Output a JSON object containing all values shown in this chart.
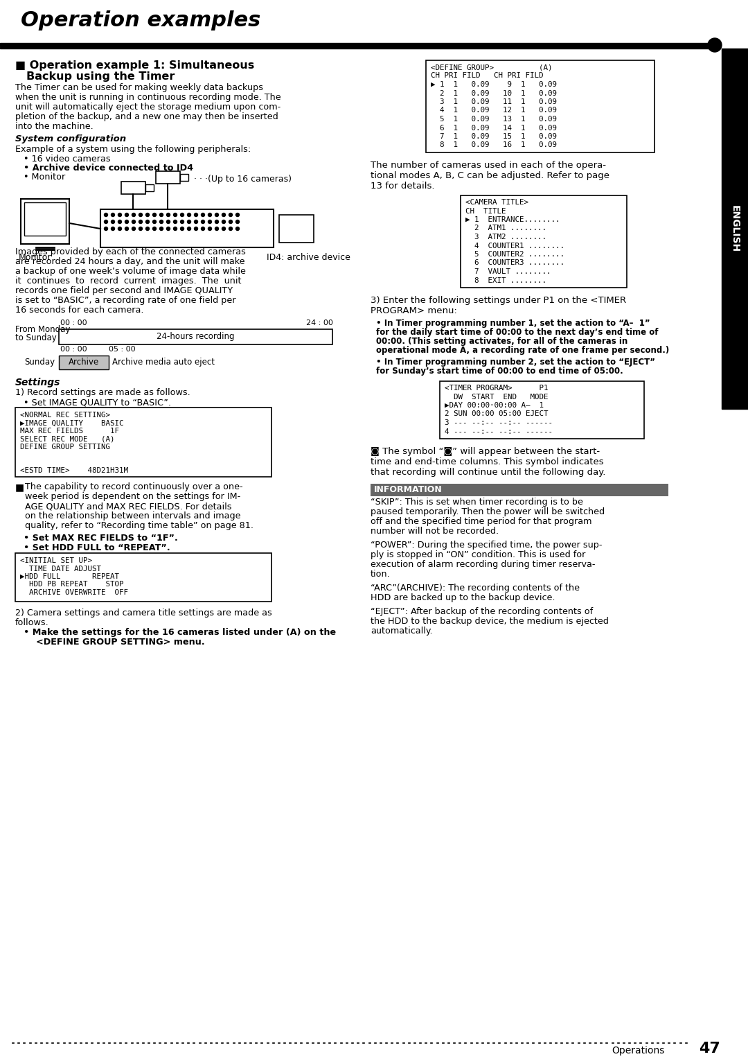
{
  "title": "Operation examples",
  "bg_color": "#ffffff",
  "text_color": "#000000",
  "title_fontsize": 22,
  "body_fontsize": 9.5,
  "mono_fontsize": 8.0,
  "section_heading": "Operation example 1: Simultaneous\nBackup using the Timer",
  "intro_lines": [
    "The Timer can be used for making weekly data backups",
    "when the unit is running in continuous recording mode. The",
    "unit will automatically eject the storage medium upon com-",
    "pletion of the backup, and a new one may then be inserted",
    "into the machine."
  ],
  "sysconfig_heading": "System configuration",
  "sysconfig_text": "Example of a system using the following peripherals:",
  "sysconfig_bullets": [
    "• 16 video cameras",
    "• Archive device connected to ID4",
    "• Monitor"
  ],
  "sysconfig_bullets_bold": [
    false,
    true,
    false
  ],
  "diagram_monitor": "Monitor",
  "diagram_cameras": "· · ·(Up to 16 cameras)",
  "diagram_id4": "ID4: archive device",
  "main_para_lines": [
    "Images provided by each of the connected cameras",
    "are recorded 24 hours a day, and the unit will make",
    "a backup of one week’s volume of image data while",
    "it  continues  to  record  current  images.  The  unit",
    "records one field per second and IMAGE QUALITY",
    "is set to “BASIC”, a recording rate of one field per",
    "16 seconds for each camera."
  ],
  "tl_time1": "00 : 00",
  "tl_time2": "24 : 00",
  "tl_label": "24-hours recording",
  "tl_time3": "00 : 00",
  "tl_time4": "05 : 00",
  "tl_from": "From Monday",
  "tl_to": "to Sunday",
  "tl_sunday": "Sunday",
  "tl_archive": "Archive",
  "tl_note": "Archive media auto eject",
  "settings_heading": "Settings",
  "s1_text": "1) Record settings are made as follows.",
  "s1_bullet": "• Set IMAGE QUALITY to “BASIC”.",
  "normal_rec_lines": [
    "<NORMAL REC SETTING>",
    "▶IMAGE QUALITY    BASIC",
    "MAX REC FIELDS      1F",
    "SELECT REC MODE   (A)",
    "DEFINE GROUP SETTING",
    "",
    "",
    "<ESTD TIME>    48D21H31M"
  ],
  "cap_lines": [
    "The capability to record continuously over a one-",
    "week period is dependent on the settings for IM-",
    "AGE QUALITY and MAX REC FIELDS. For details",
    "on the relationship between intervals and image",
    "quality, refer to “Recording time table” on page 81."
  ],
  "s_bullet2": "• Set MAX REC FIELDS to “1F”.",
  "s_bullet3": "• Set HDD FULL to “REPEAT”.",
  "initial_set_lines": [
    "<INITIAL SET UP>",
    "  TIME DATE ADJUST",
    "▶HDD FULL       REPEAT",
    "  HDD PB REPEAT    STOP",
    "  ARCHIVE OVERWRITE  OFF"
  ],
  "cam_text1": "2) Camera settings and camera title settings are made as",
  "cam_text2": "follows.",
  "cam_bold1": "• Make the settings for the 16 cameras listed under (A) on the",
  "cam_bold2": "    <DEFINE GROUP SETTING> menu.",
  "dg_lines": [
    "<DEFINE GROUP>          (A)",
    "CH PRI FILD   CH PRI FILD",
    "▶ 1  1   0.09    9  1   0.09",
    "  2  1   0.09   10  1   0.09",
    "  3  1   0.09   11  1   0.09",
    "  4  1   0.09   12  1   0.09",
    "  5  1   0.09   13  1   0.09",
    "  6  1   0.09   14  1   0.09",
    "  7  1   0.09   15  1   0.09",
    "  8  1   0.09   16  1   0.09"
  ],
  "rt1_lines": [
    "The number of cameras used in each of the opera-",
    "tional modes A, B, C can be adjusted. Refer to page",
    "13 for details."
  ],
  "ct_lines": [
    "<CAMERA TITLE>",
    "CH  TITLE",
    "▶ 1  ENTRANCE........",
    "  2  ATM1 ........",
    "  3  ATM2 ........",
    "  4  COUNTER1 ........",
    "  5  COUNTER2 ........",
    "  6  COUNTER3 ........",
    "  7  VAULT ........",
    "  8  EXIT ........"
  ],
  "tp_intro1": "3) Enter the following settings under P1 on the <TIMER",
  "tp_intro2": "PROGRAM> menu:",
  "tp_b1_lines": [
    "• In Timer programming number 1, set the action to “A–  1”",
    "for the daily start time of 00:00 to the next day’s end time of",
    "00:00. (This setting activates, for all of the cameras in",
    "operational mode A, a recording rate of one frame per second.)"
  ],
  "tp_b2_lines": [
    "• In Timer programming number 2, set the action to “EJECT”",
    "for Sunday’s start time of 00:00 to end time of 05:00."
  ],
  "tpb_lines": [
    "<TIMER PROGRAM>      P1",
    "  DW  START  END   MODE",
    "▶DAY 00:00·00:00 A–  1",
    "2 SUN 00:00 05:00 EJECT",
    "3 --- --:-- --:-- ------",
    "4 --- --:-- --:-- ------"
  ],
  "sym_lines": [
    "◙ The symbol “◙” will appear between the start-",
    "time and end-time columns. This symbol indicates",
    "that recording will continue until the following day."
  ],
  "info_title": "INFORMATION",
  "info_bg": "#666666",
  "info_p1_lines": [
    "“SKIP”: This is set when timer recording is to be",
    "paused temporarily. Then the power will be switched",
    "off and the specified time period for that program",
    "number will not be recorded."
  ],
  "info_p2_lines": [
    "“POWER”: During the specified time, the power sup-",
    "ply is stopped in “ON” condition. This is used for",
    "execution of alarm recording during timer reserva-",
    "tion."
  ],
  "info_p3_lines": [
    "“ARC”(ARCHIVE): The recording contents of the",
    "HDD are backed up to the backup device."
  ],
  "info_p4_lines": [
    "“EJECT”: After backup of the recording contents of",
    "the HDD to the backup device, the medium is ejected",
    "automatically."
  ],
  "footer_label": "Operations",
  "page_num": "47",
  "english_label": "ENGLISH"
}
